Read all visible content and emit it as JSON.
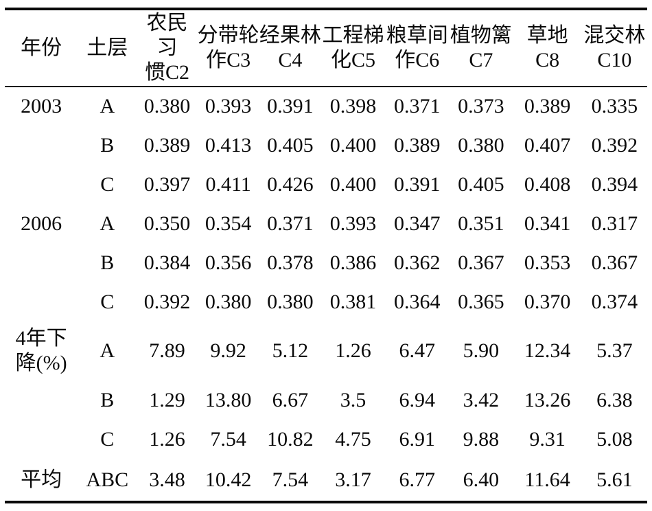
{
  "table": {
    "columns": [
      {
        "key": "year",
        "label": "年份"
      },
      {
        "key": "layer",
        "label": "土层"
      },
      {
        "key": "c2",
        "label": "农民习\n惯C2"
      },
      {
        "key": "c3",
        "label": "分带轮\n作C3"
      },
      {
        "key": "c4",
        "label": "经果林\nC4"
      },
      {
        "key": "c5",
        "label": "工程梯\n化C5"
      },
      {
        "key": "c6",
        "label": "粮草间\n作C6"
      },
      {
        "key": "c7",
        "label": "植物篱\nC7"
      },
      {
        "key": "c8",
        "label": "草地\nC8"
      },
      {
        "key": "c10",
        "label": "混交林\nC10"
      }
    ],
    "rows": [
      {
        "year": "2003",
        "layer": "A",
        "values": [
          "0.380",
          "0.393",
          "0.391",
          "0.398",
          "0.371",
          "0.373",
          "0.389",
          "0.335"
        ]
      },
      {
        "year": "",
        "layer": "B",
        "values": [
          "0.389",
          "0.413",
          "0.405",
          "0.400",
          "0.389",
          "0.380",
          "0.407",
          "0.392"
        ]
      },
      {
        "year": "",
        "layer": "C",
        "values": [
          "0.397",
          "0.411",
          "0.426",
          "0.400",
          "0.391",
          "0.405",
          "0.408",
          "0.394"
        ]
      },
      {
        "year": "2006",
        "layer": "A",
        "values": [
          "0.350",
          "0.354",
          "0.371",
          "0.393",
          "0.347",
          "0.351",
          "0.341",
          "0.317"
        ]
      },
      {
        "year": "",
        "layer": "B",
        "values": [
          "0.384",
          "0.356",
          "0.378",
          "0.386",
          "0.362",
          "0.367",
          "0.353",
          "0.367"
        ]
      },
      {
        "year": "",
        "layer": "C",
        "values": [
          "0.392",
          "0.380",
          "0.380",
          "0.381",
          "0.364",
          "0.365",
          "0.370",
          "0.374"
        ]
      },
      {
        "year": "4年下\n降(%)",
        "layer": "A",
        "values": [
          "7.89",
          "9.92",
          "5.12",
          "1.26",
          "6.47",
          "5.90",
          "12.34",
          "5.37"
        ]
      },
      {
        "year": "",
        "layer": "B",
        "values": [
          "1.29",
          "13.80",
          "6.67",
          "3.5",
          "6.94",
          "3.42",
          "13.26",
          "6.38"
        ]
      },
      {
        "year": "",
        "layer": "C",
        "values": [
          "1.26",
          "7.54",
          "10.82",
          "4.75",
          "6.91",
          "9.88",
          "9.31",
          "5.08"
        ]
      },
      {
        "year": "平均",
        "layer": "ABC",
        "values": [
          "3.48",
          "10.42",
          "7.54",
          "3.17",
          "6.77",
          "6.40",
          "11.64",
          "5.61"
        ]
      }
    ]
  }
}
